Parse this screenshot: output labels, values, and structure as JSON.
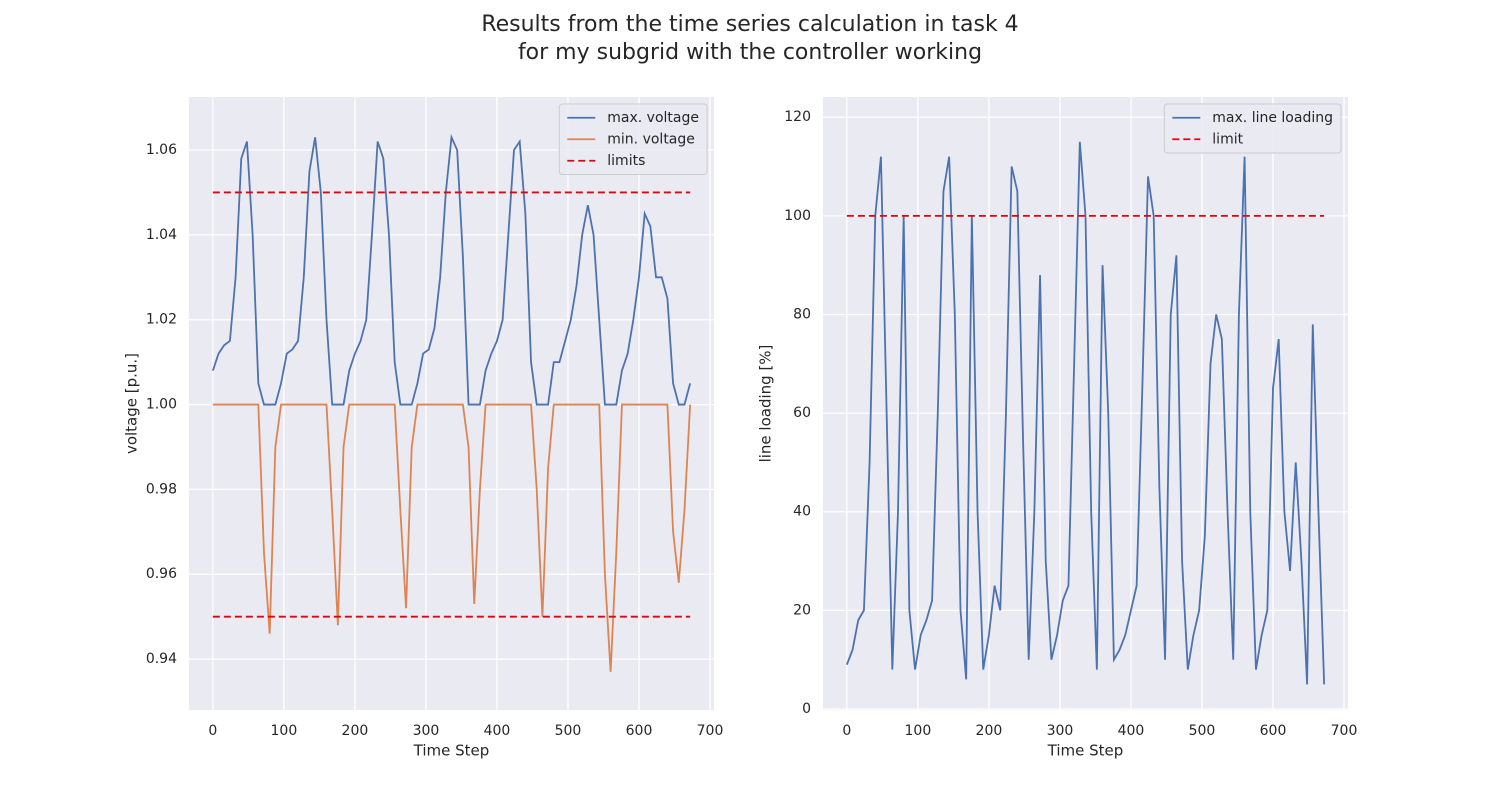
{
  "title": [
    "Results from the time series calculation in task 4",
    "for my subgrid with the controller working"
  ],
  "chart_data": [
    {
      "type": "line",
      "xlabel": "Time Step",
      "ylabel": "voltage [p.u.]",
      "grid": true,
      "legend": "upper right",
      "xlim": [
        -33.6,
        705.6
      ],
      "xticks": [
        0,
        100,
        200,
        300,
        400,
        500,
        600,
        700
      ],
      "ylim": [
        0.928,
        1.0725
      ],
      "yticks": [
        0.94,
        0.96,
        0.98,
        {
          "value": 1.0,
          "label": "1.00"
        },
        1.02,
        1.04,
        1.06
      ],
      "x": [
        0,
        8,
        16,
        24,
        32,
        40,
        48,
        56,
        64,
        72,
        80,
        88,
        96,
        104,
        112,
        120,
        128,
        136,
        144,
        152,
        160,
        168,
        176,
        184,
        192,
        200,
        208,
        216,
        224,
        232,
        240,
        248,
        256,
        264,
        272,
        280,
        288,
        296,
        304,
        312,
        320,
        328,
        336,
        344,
        352,
        360,
        368,
        376,
        384,
        392,
        400,
        408,
        416,
        424,
        432,
        440,
        448,
        456,
        464,
        472,
        480,
        488,
        496,
        504,
        512,
        520,
        528,
        536,
        544,
        552,
        560,
        568,
        576,
        584,
        592,
        600,
        608,
        616,
        624,
        632,
        640,
        648,
        656,
        664,
        672
      ],
      "series": [
        {
          "name": "max. voltage",
          "color": "#4c72b0",
          "values": [
            1.008,
            1.012,
            1.014,
            1.015,
            1.03,
            1.058,
            1.062,
            1.04,
            1.005,
            1.0,
            1.0,
            1.0,
            1.005,
            1.012,
            1.013,
            1.015,
            1.03,
            1.055,
            1.063,
            1.05,
            1.02,
            1.0,
            1.0,
            1.0,
            1.008,
            1.012,
            1.015,
            1.02,
            1.04,
            1.062,
            1.058,
            1.04,
            1.01,
            1.0,
            1.0,
            1.0,
            1.005,
            1.012,
            1.013,
            1.018,
            1.03,
            1.05,
            1.063,
            1.06,
            1.035,
            1.0,
            1.0,
            1.0,
            1.008,
            1.012,
            1.015,
            1.02,
            1.04,
            1.06,
            1.062,
            1.045,
            1.01,
            1.0,
            1.0,
            1.0,
            1.01,
            1.01,
            1.015,
            1.02,
            1.028,
            1.04,
            1.047,
            1.04,
            1.02,
            1.0,
            1.0,
            1.0,
            1.008,
            1.012,
            1.02,
            1.03,
            1.045,
            1.042,
            1.03,
            1.03,
            1.025,
            1.005,
            1.0,
            1.0,
            1.005
          ]
        },
        {
          "name": "min. voltage",
          "color": "#dd8452",
          "values": [
            1.0,
            1.0,
            1.0,
            1.0,
            1.0,
            1.0,
            1.0,
            1.0,
            1.0,
            0.965,
            0.946,
            0.99,
            1.0,
            1.0,
            1.0,
            1.0,
            1.0,
            1.0,
            1.0,
            1.0,
            1.0,
            0.975,
            0.948,
            0.99,
            1.0,
            1.0,
            1.0,
            1.0,
            1.0,
            1.0,
            1.0,
            1.0,
            1.0,
            0.975,
            0.952,
            0.99,
            1.0,
            1.0,
            1.0,
            1.0,
            1.0,
            1.0,
            1.0,
            1.0,
            1.0,
            0.99,
            0.953,
            0.98,
            1.0,
            1.0,
            1.0,
            1.0,
            1.0,
            1.0,
            1.0,
            1.0,
            1.0,
            0.98,
            0.95,
            0.985,
            1.0,
            1.0,
            1.0,
            1.0,
            1.0,
            1.0,
            1.0,
            1.0,
            1.0,
            0.96,
            0.937,
            0.965,
            1.0,
            1.0,
            1.0,
            1.0,
            1.0,
            1.0,
            1.0,
            1.0,
            1.0,
            0.97,
            0.958,
            0.975,
            1.0
          ]
        }
      ],
      "hlines": {
        "name": "limits",
        "color": "#e8000b",
        "linestyle": "dashed",
        "x": [
          0,
          672
        ],
        "values": [
          0.95,
          1.05
        ]
      }
    },
    {
      "type": "line",
      "xlabel": "Time Step",
      "ylabel": "line loading [%]",
      "grid": true,
      "legend": "upper right",
      "xlim": [
        -33.6,
        705.6
      ],
      "xticks": [
        0,
        100,
        200,
        300,
        400,
        500,
        600,
        700
      ],
      "ylim": [
        -0.2,
        124.1
      ],
      "yticks": [
        0,
        20,
        40,
        60,
        80,
        100,
        120
      ],
      "x": [
        0,
        8,
        16,
        24,
        32,
        40,
        48,
        56,
        64,
        72,
        80,
        88,
        96,
        104,
        112,
        120,
        128,
        136,
        144,
        152,
        160,
        168,
        176,
        184,
        192,
        200,
        208,
        216,
        224,
        232,
        240,
        248,
        256,
        264,
        272,
        280,
        288,
        296,
        304,
        312,
        320,
        328,
        336,
        344,
        352,
        360,
        368,
        376,
        384,
        392,
        400,
        408,
        416,
        424,
        432,
        440,
        448,
        456,
        464,
        472,
        480,
        488,
        496,
        504,
        512,
        520,
        528,
        536,
        544,
        552,
        560,
        568,
        576,
        584,
        592,
        600,
        608,
        616,
        624,
        632,
        640,
        648,
        656,
        664,
        672
      ],
      "series": [
        {
          "name": "max. line loading",
          "color": "#4c72b0",
          "values": [
            9,
            12,
            18,
            20,
            50,
            100,
            112,
            60,
            8,
            40,
            100,
            20,
            8,
            15,
            18,
            22,
            60,
            105,
            112,
            80,
            20,
            6,
            100,
            40,
            8,
            15,
            25,
            20,
            60,
            110,
            105,
            55,
            10,
            40,
            88,
            30,
            10,
            15,
            22,
            25,
            70,
            115,
            100,
            40,
            8,
            90,
            60,
            10,
            12,
            15,
            20,
            25,
            65,
            108,
            100,
            45,
            10,
            80,
            92,
            30,
            8,
            15,
            20,
            35,
            70,
            80,
            75,
            40,
            10,
            80,
            112,
            40,
            8,
            15,
            20,
            65,
            75,
            40,
            28,
            50,
            30,
            5,
            78,
            40,
            5
          ]
        }
      ],
      "hlines": {
        "name": "limit",
        "color": "#e8000b",
        "linestyle": "dashed",
        "x": [
          0,
          672
        ],
        "values": [
          100
        ]
      }
    }
  ]
}
